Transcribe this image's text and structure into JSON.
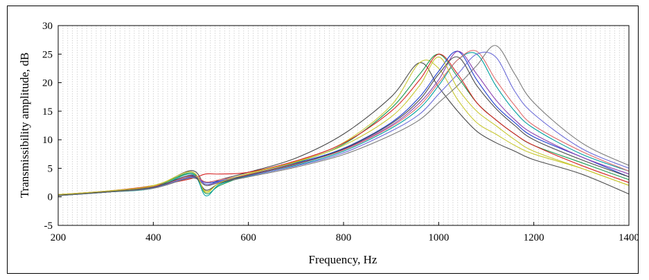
{
  "chart_data": {
    "type": "line",
    "title": "",
    "xlabel": "Frequency, Hz",
    "ylabel": "Transmissibility amplitude, dB",
    "xlim": [
      200,
      1400
    ],
    "ylim": [
      -5,
      30
    ],
    "xticks": [
      200,
      400,
      600,
      800,
      1000,
      1200,
      1400
    ],
    "yticks": [
      -5,
      0,
      5,
      10,
      15,
      20,
      25,
      30
    ],
    "grid": "dense vertical dotted lines",
    "legend": "none",
    "series_colors": [
      "#4a4a4a",
      "#c8c832",
      "#1a9a50",
      "#d62020",
      "#1f3fcf",
      "#8a3fb0",
      "#00a0a0",
      "#e06a6a",
      "#6a6ad8",
      "#7a7a7a"
    ],
    "x": [
      200,
      300,
      400,
      480,
      510,
      540,
      600,
      700,
      800,
      900,
      960,
      1000,
      1040,
      1080,
      1120,
      1160,
      1200,
      1300,
      1400
    ],
    "series": [
      {
        "values": [
          0.3,
          0.8,
          1.8,
          4.6,
          2.0,
          3.0,
          4.3,
          6.8,
          11.0,
          17.5,
          23.5,
          19.2,
          15.0,
          11.5,
          9.5,
          8.0,
          6.5,
          4.0,
          0.5
        ]
      },
      {
        "values": [
          0.4,
          1.0,
          2.0,
          4.0,
          1.0,
          2.4,
          4.0,
          6.2,
          9.5,
          16.0,
          23.5,
          22.5,
          17.0,
          13.0,
          11.0,
          9.0,
          7.5,
          5.0,
          2.0
        ]
      },
      {
        "values": [
          0.3,
          0.9,
          1.7,
          4.2,
          0.6,
          2.0,
          3.8,
          6.0,
          9.2,
          15.5,
          21.5,
          25.0,
          21.0,
          16.5,
          13.5,
          11.0,
          9.0,
          6.0,
          3.0
        ]
      },
      {
        "values": [
          0.4,
          1.0,
          1.9,
          3.2,
          4.0,
          4.0,
          4.3,
          6.3,
          9.4,
          15.0,
          20.5,
          25.0,
          21.5,
          16.5,
          13.5,
          11.0,
          9.0,
          5.5,
          2.5
        ]
      },
      {
        "values": [
          0.2,
          0.8,
          1.6,
          3.5,
          2.5,
          2.8,
          3.9,
          5.9,
          8.5,
          13.0,
          17.5,
          22.0,
          25.5,
          20.5,
          16.0,
          13.0,
          10.5,
          7.0,
          3.5
        ]
      },
      {
        "values": [
          0.3,
          0.9,
          1.7,
          3.8,
          2.2,
          2.6,
          3.8,
          5.7,
          8.3,
          12.5,
          16.5,
          20.5,
          25.5,
          21.5,
          17.0,
          13.5,
          11.0,
          7.0,
          4.0
        ]
      },
      {
        "values": [
          0.2,
          0.8,
          1.5,
          4.0,
          0.2,
          2.2,
          3.6,
          5.5,
          8.0,
          12.0,
          15.5,
          19.5,
          24.0,
          25.0,
          19.5,
          15.0,
          12.0,
          7.5,
          4.5
        ]
      },
      {
        "values": [
          0.4,
          1.0,
          1.8,
          3.6,
          2.6,
          3.0,
          3.9,
          5.8,
          8.2,
          12.3,
          16.0,
          20.0,
          24.0,
          25.5,
          20.5,
          16.0,
          12.5,
          8.0,
          4.5
        ]
      },
      {
        "values": [
          0.3,
          0.9,
          1.6,
          3.4,
          2.2,
          2.7,
          3.7,
          5.4,
          7.7,
          11.5,
          14.5,
          18.0,
          21.5,
          25.0,
          24.5,
          18.5,
          14.5,
          8.5,
          5.0
        ]
      },
      {
        "values": [
          0.2,
          0.8,
          1.5,
          3.3,
          2.0,
          2.5,
          3.5,
          5.2,
          7.4,
          10.8,
          13.5,
          16.5,
          19.5,
          23.0,
          26.5,
          21.5,
          16.5,
          9.5,
          5.5
        ]
      },
      {
        "values": [
          0.3,
          0.9,
          1.7,
          3.7,
          1.2,
          2.4,
          3.8,
          5.7,
          8.4,
          12.8,
          17.0,
          21.5,
          24.5,
          19.5,
          15.5,
          12.5,
          10.0,
          6.5,
          3.5
        ]
      },
      {
        "values": [
          0.4,
          1.0,
          1.9,
          4.4,
          0.8,
          2.5,
          4.1,
          6.1,
          9.0,
          14.0,
          19.5,
          24.5,
          19.0,
          15.0,
          12.5,
          10.0,
          8.0,
          5.0,
          2.0
        ]
      }
    ]
  }
}
